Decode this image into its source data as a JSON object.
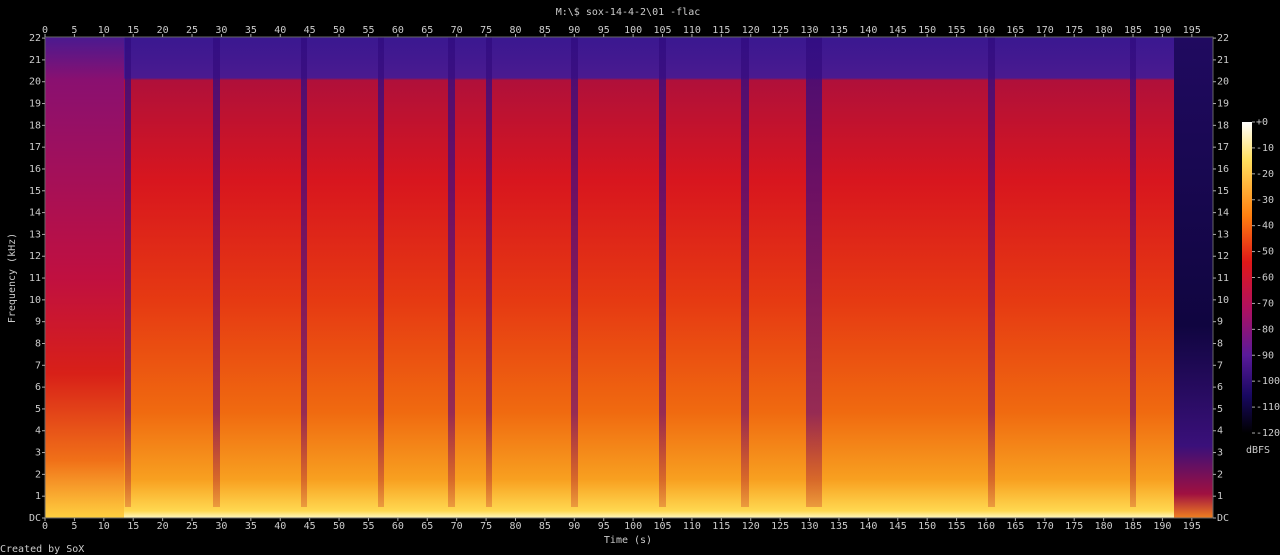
{
  "chart_data": {
    "type": "spectrogram",
    "title": "M:\\$ sox-14-4-2\\01 -flac",
    "xlabel": "Time (s)",
    "ylabel": "Frequency (kHz)",
    "footer": "Created by SoX",
    "xlim": [
      0,
      198.6
    ],
    "xticks": [
      0,
      5,
      10,
      15,
      20,
      25,
      30,
      35,
      40,
      45,
      50,
      55,
      60,
      65,
      70,
      75,
      80,
      85,
      90,
      95,
      100,
      105,
      110,
      115,
      120,
      125,
      130,
      135,
      140,
      145,
      150,
      155,
      160,
      165,
      170,
      175,
      180,
      185,
      190,
      195
    ],
    "ylim": [
      0,
      22.05
    ],
    "yticks": [
      {
        "value": 0,
        "label": "DC"
      },
      1,
      2,
      3,
      4,
      5,
      6,
      7,
      8,
      9,
      10,
      11,
      12,
      13,
      14,
      15,
      16,
      17,
      18,
      19,
      20,
      21,
      22
    ],
    "colorbar": {
      "label": "dBFS",
      "lim": [
        -120,
        0
      ],
      "ticks": [
        {
          "value": 0,
          "label": "+0"
        },
        -10,
        -20,
        -30,
        -40,
        -50,
        -60,
        -70,
        -80,
        -90,
        -100,
        -110,
        -120
      ]
    }
  }
}
